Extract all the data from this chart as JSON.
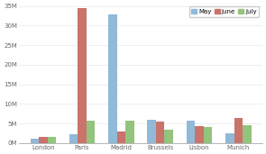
{
  "categories": [
    "London",
    "Paris",
    "Madrid",
    "Brussels",
    "Lisbon",
    "Munich"
  ],
  "may": [
    1200000,
    2300000,
    32800000,
    6000000,
    5700000,
    2500000
  ],
  "june": [
    1600000,
    34500000,
    3000000,
    5500000,
    4300000,
    6300000
  ],
  "july": [
    1500000,
    5700000,
    5800000,
    3500000,
    4000000,
    4500000
  ],
  "may_color": "#91B9D8",
  "june_color": "#C9736A",
  "july_color": "#93C47D",
  "ylim": [
    0,
    35000000
  ],
  "yticks": [
    0,
    5000000,
    10000000,
    15000000,
    20000000,
    25000000,
    30000000,
    35000000
  ],
  "ytick_labels": [
    "0M",
    "5M",
    "10M",
    "15M",
    "20M",
    "25M",
    "30M",
    "35M"
  ],
  "legend_labels": [
    "May",
    "June",
    "July"
  ],
  "bg_color": "#FFFFFF",
  "grid_color": "#E8E8E8"
}
